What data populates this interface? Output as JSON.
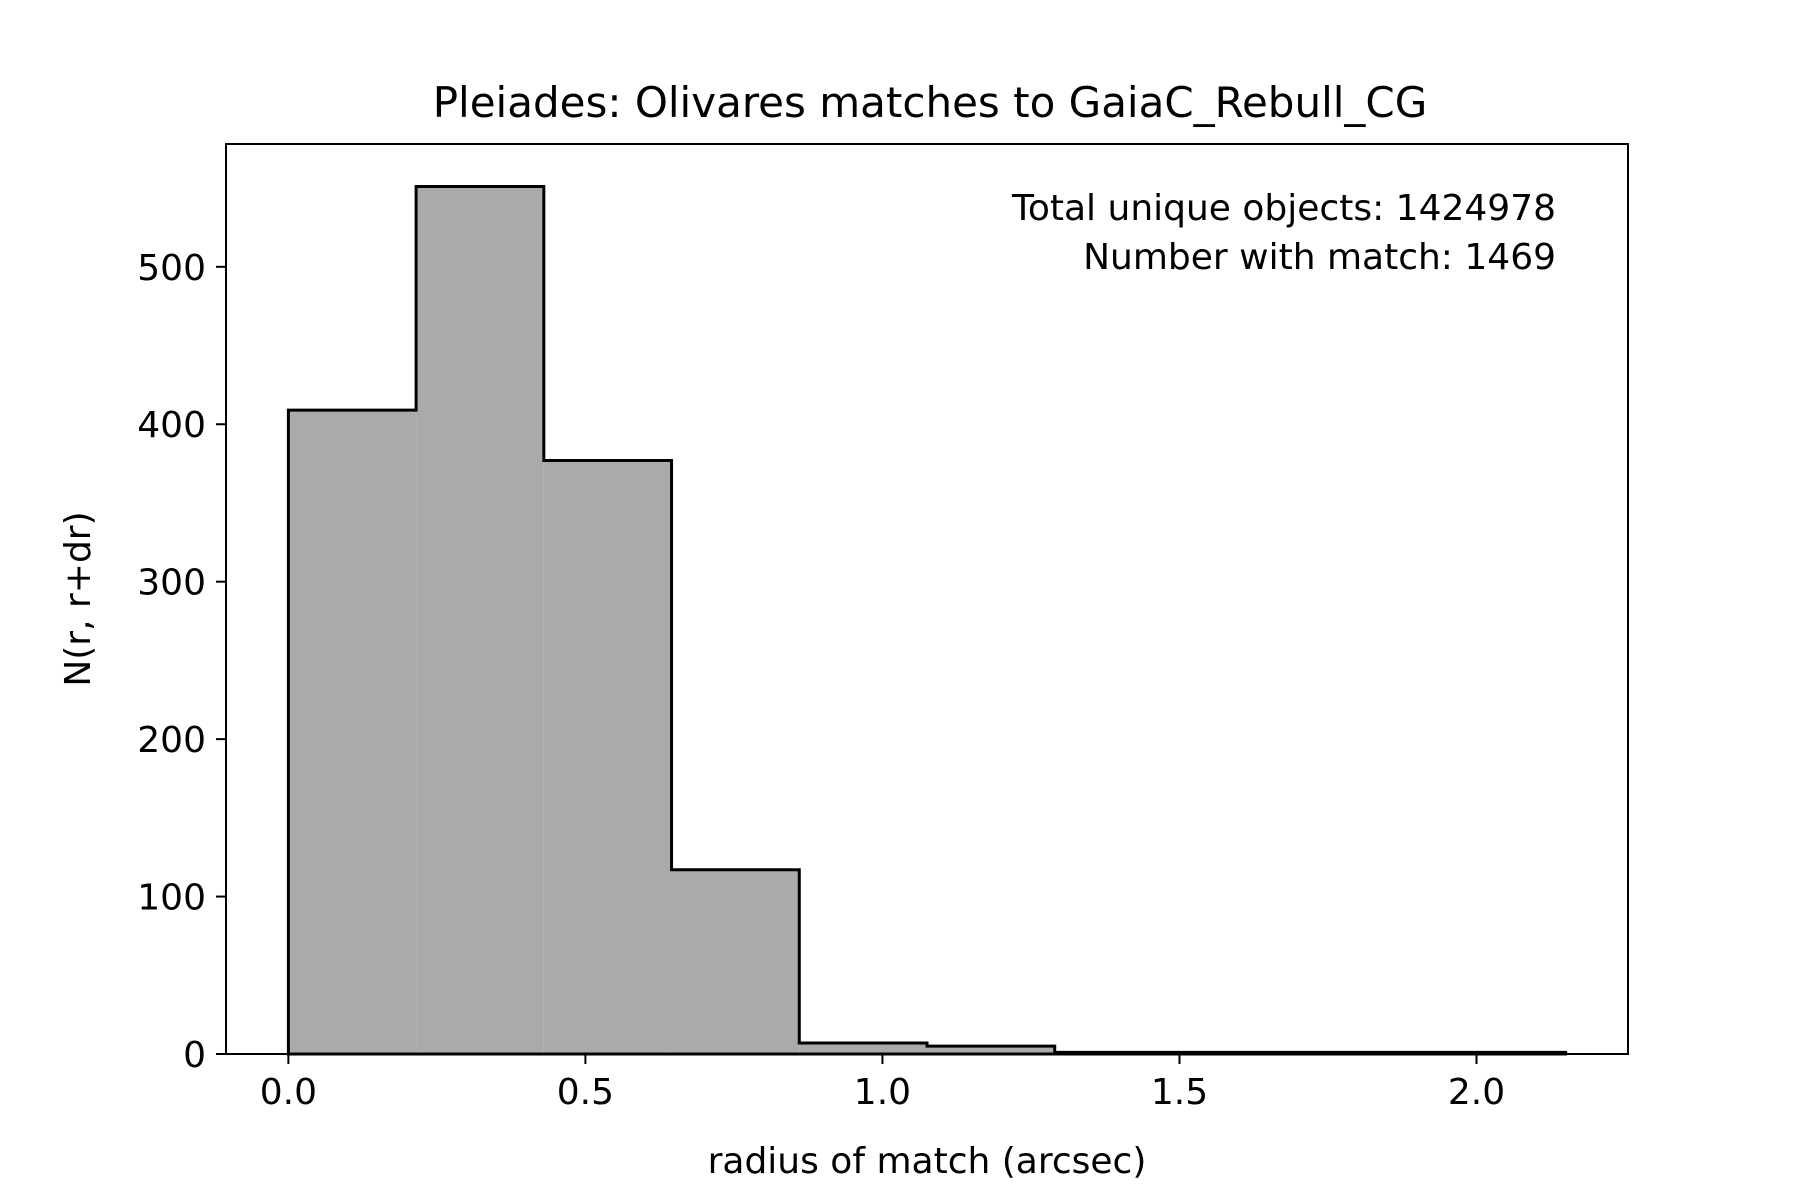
{
  "chart_data": {
    "type": "bar",
    "histogram": true,
    "title": "Pleiades: Olivares matches to GaiaC_Rebull_CG",
    "xlabel": "radius of match (arcsec)",
    "ylabel": "N(r, r+dr)",
    "xlim": [
      -0.105,
      2.255
    ],
    "ylim": [
      0,
      578
    ],
    "xticks": [
      0.0,
      0.5,
      1.0,
      1.5,
      2.0
    ],
    "xtick_labels": [
      "0.0",
      "0.5",
      "1.0",
      "1.5",
      "2.0"
    ],
    "yticks": [
      0,
      100,
      200,
      300,
      400,
      500
    ],
    "ytick_labels": [
      "0",
      "100",
      "200",
      "300",
      "400",
      "500"
    ],
    "bin_edges": [
      0.0,
      0.215,
      0.43,
      0.645,
      0.86,
      1.075,
      1.29,
      1.505,
      1.72,
      1.935,
      2.15
    ],
    "values": [
      409,
      551,
      377,
      117,
      7,
      5,
      1,
      1,
      1,
      1
    ],
    "bar_color": "#aaaaaa",
    "edge_color": "#000000",
    "grid": false,
    "annotations": [
      "Total unique objects: 1424978",
      "Number with match: 1469"
    ],
    "annotation_position": "top-right"
  }
}
